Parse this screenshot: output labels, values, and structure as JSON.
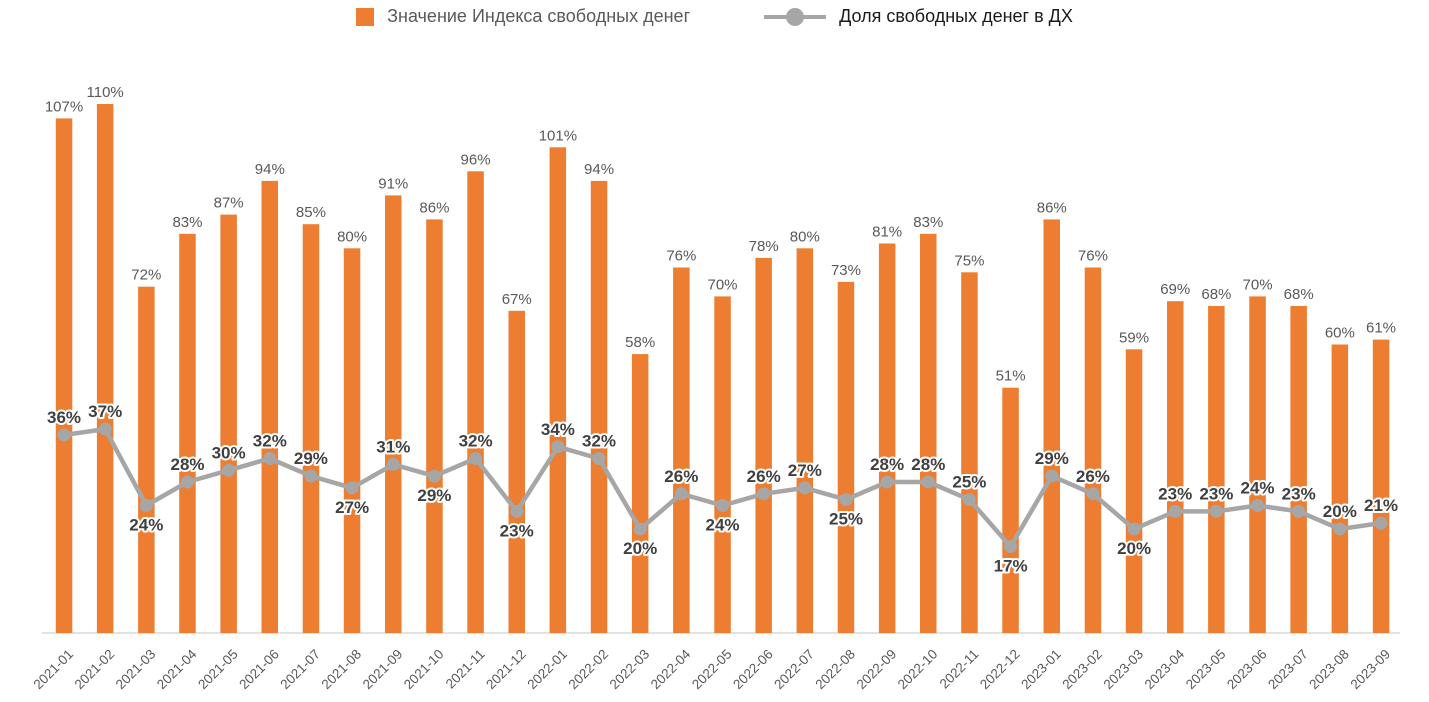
{
  "chart_data": {
    "type": "combo",
    "title": "",
    "categories": [
      "2021-01",
      "2021-02",
      "2021-03",
      "2021-04",
      "2021-05",
      "2021-06",
      "2021-07",
      "2021-08",
      "2021-09",
      "2021-10",
      "2021-11",
      "2021-12",
      "2022-01",
      "2022-02",
      "2022-03",
      "2022-04",
      "2022-05",
      "2022-06",
      "2022-07",
      "2022-08",
      "2022-09",
      "2022-10",
      "2022-11",
      "2022-12",
      "2023-01",
      "2023-02",
      "2023-03",
      "2023-04",
      "2023-05",
      "2023-06",
      "2023-07",
      "2023-08",
      "2023-09"
    ],
    "series": [
      {
        "name": "Значение Индекса свободных денег",
        "type": "bar",
        "color": "#ED7D31",
        "label_color": "#595959",
        "values": [
          107,
          110,
          72,
          83,
          87,
          94,
          85,
          80,
          91,
          86,
          96,
          67,
          101,
          94,
          58,
          76,
          70,
          78,
          80,
          73,
          81,
          83,
          75,
          51,
          86,
          76,
          59,
          69,
          68,
          70,
          68,
          60,
          61
        ]
      },
      {
        "name": "Доля свободных денег в ДХ",
        "type": "line",
        "color": "#A6A6A6",
        "label_color": "#404040",
        "values": [
          36,
          37,
          24,
          28,
          30,
          32,
          29,
          27,
          31,
          29,
          32,
          23,
          34,
          32,
          20,
          26,
          24,
          26,
          27,
          25,
          28,
          28,
          25,
          17,
          29,
          26,
          20,
          23,
          23,
          24,
          23,
          20,
          21
        ],
        "label_side": [
          "above",
          "above",
          "below",
          "above",
          "above",
          "above",
          "above",
          "below",
          "above",
          "below",
          "above",
          "below",
          "above",
          "above",
          "below",
          "above",
          "below",
          "above",
          "above",
          "below",
          "above",
          "above",
          "above",
          "below",
          "above",
          "above",
          "below",
          "above",
          "above",
          "above",
          "above",
          "above",
          "above"
        ]
      }
    ],
    "value_suffix": "%",
    "legend_position": "top",
    "axis": {
      "baseline_color": "#D9D9D9",
      "tick_label_color": "#595959",
      "bar_axis_max": 110,
      "line_axis_max": 40,
      "grid": "off"
    }
  }
}
